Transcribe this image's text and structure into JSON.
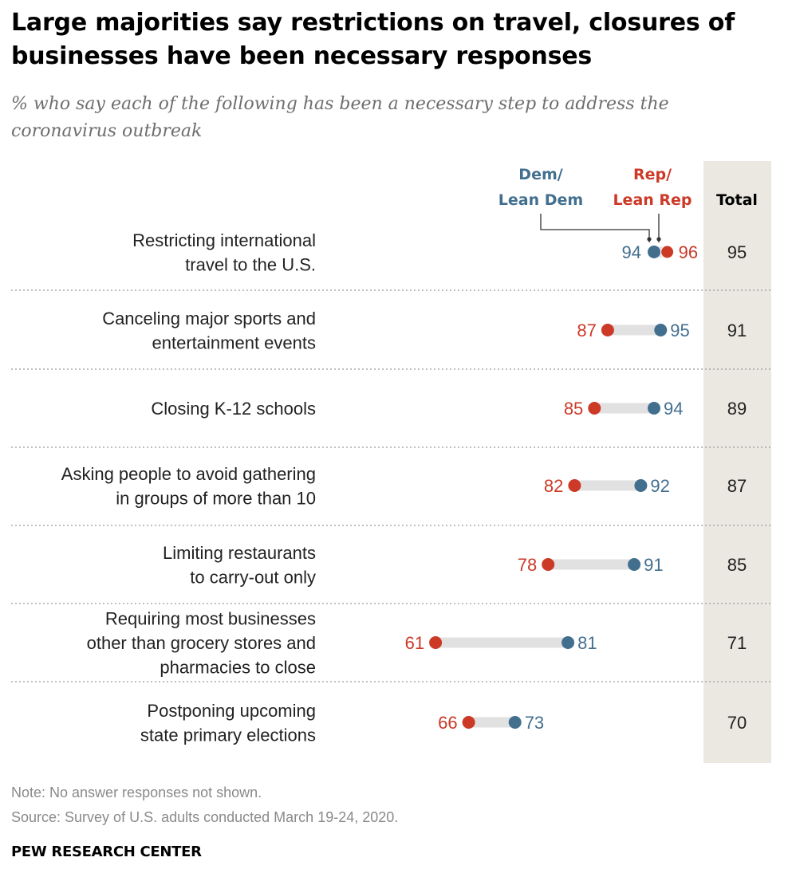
{
  "chart_data": {
    "type": "dot",
    "title": "Large majorities say restrictions on travel, closures of businesses have been necessary responses",
    "subtitle": "% who say each of the following has been a necessary step to address the coronavirus outbreak",
    "xlim": [
      0,
      100
    ],
    "series": [
      {
        "name": "Dem/ Lean Dem",
        "color": "#436f8f"
      },
      {
        "name": "Rep/ Lean Rep",
        "color": "#cc3a27"
      }
    ],
    "legend": {
      "dem_line1": "Dem/",
      "dem_line2": "Lean Dem",
      "rep_line1": "Rep/",
      "rep_line2": "Lean Rep"
    },
    "total_header": "Total",
    "rows": [
      {
        "label": [
          "Restricting international",
          "travel to the U.S."
        ],
        "dem": 94,
        "rep": 96,
        "total": 95
      },
      {
        "label": [
          "Canceling major sports and",
          "entertainment events"
        ],
        "dem": 95,
        "rep": 87,
        "total": 91
      },
      {
        "label": [
          "Closing K-12 schools"
        ],
        "dem": 94,
        "rep": 85,
        "total": 89
      },
      {
        "label": [
          "Asking people to avoid gathering",
          "in groups of more than 10"
        ],
        "dem": 92,
        "rep": 82,
        "total": 87
      },
      {
        "label": [
          "Limiting restaurants",
          "to carry-out only"
        ],
        "dem": 91,
        "rep": 78,
        "total": 85
      },
      {
        "label": [
          "Requiring most businesses",
          "other than grocery stores and",
          "pharmacies to close"
        ],
        "dem": 81,
        "rep": 61,
        "total": 71
      },
      {
        "label": [
          "Postponing upcoming",
          "state primary elections"
        ],
        "dem": 73,
        "rep": 66,
        "total": 70
      }
    ]
  },
  "footer": {
    "note": "Note: No answer responses not shown.",
    "source": "Source: Survey of U.S. adults conducted March 19-24, 2020.",
    "org": "PEW RESEARCH CENTER"
  }
}
